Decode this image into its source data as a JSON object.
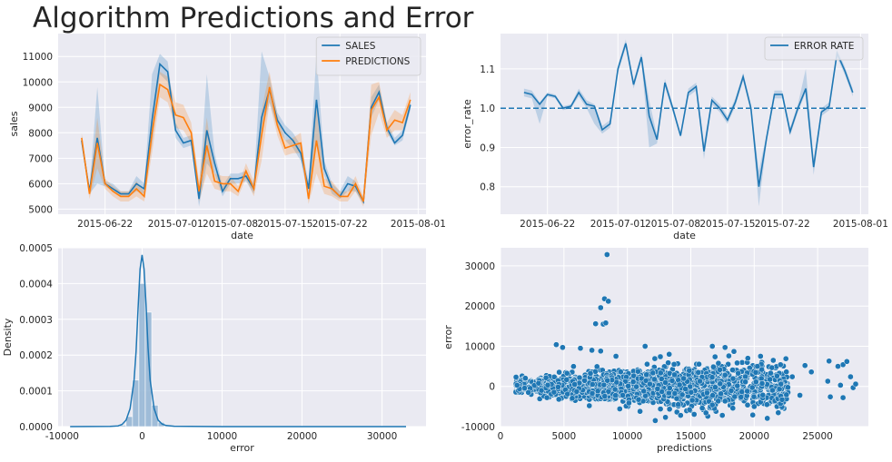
{
  "suptitle": "Algorithm Predictions and Error",
  "colors": {
    "blue": "#1f77b4",
    "orange": "#ff7f0e",
    "hist": "#92b4d4",
    "background": "#eaeaf2",
    "grid": "#ffffff"
  },
  "chart_data": [
    {
      "type": "line",
      "xlabel": "date",
      "ylabel": "sales",
      "x_ticks": [
        "2015-06-22",
        "2015-07-01",
        "2015-07-08",
        "2015-07-15",
        "2015-07-22",
        "2015-08-01"
      ],
      "ylim": [
        4800,
        11900
      ],
      "y_ticks": [
        5000,
        6000,
        7000,
        8000,
        9000,
        10000,
        11000
      ],
      "legend": "top-right",
      "x": [
        "2015-06-19",
        "2015-06-20",
        "2015-06-21",
        "2015-06-22",
        "2015-06-23",
        "2015-06-24",
        "2015-06-25",
        "2015-06-26",
        "2015-06-27",
        "2015-06-28",
        "2015-06-29",
        "2015-06-30",
        "2015-07-01",
        "2015-07-02",
        "2015-07-03",
        "2015-07-04",
        "2015-07-05",
        "2015-07-06",
        "2015-07-07",
        "2015-07-08",
        "2015-07-09",
        "2015-07-10",
        "2015-07-11",
        "2015-07-12",
        "2015-07-13",
        "2015-07-14",
        "2015-07-15",
        "2015-07-16",
        "2015-07-17",
        "2015-07-18",
        "2015-07-19",
        "2015-07-20",
        "2015-07-21",
        "2015-07-22",
        "2015-07-23",
        "2015-07-24",
        "2015-07-25",
        "2015-07-26",
        "2015-07-27",
        "2015-07-28",
        "2015-07-29",
        "2015-07-30",
        "2015-07-31"
      ],
      "series": [
        {
          "name": "SALES",
          "color": "#1f77b4",
          "values": [
            7700,
            5700,
            7800,
            6000,
            5800,
            5600,
            5600,
            6000,
            5800,
            8500,
            10700,
            10400,
            8100,
            7600,
            7700,
            5400,
            8100,
            6800,
            5700,
            6200,
            6200,
            6300,
            5800,
            8600,
            9700,
            8500,
            8000,
            7700,
            7200,
            5800,
            9300,
            6600,
            5800,
            5500,
            6000,
            5900,
            5300,
            9000,
            9600,
            8200,
            7600,
            7900,
            9100
          ],
          "band_lo": [
            7500,
            5600,
            6000,
            5900,
            5700,
            5500,
            5500,
            5700,
            5600,
            7500,
            10300,
            10000,
            7800,
            7400,
            7500,
            5100,
            6800,
            6400,
            5500,
            6000,
            6000,
            6100,
            5600,
            8000,
            9200,
            8200,
            7700,
            7400,
            6900,
            5500,
            7500,
            6300,
            5600,
            5400,
            5700,
            5700,
            5200,
            8600,
            9300,
            8000,
            7500,
            7700,
            8900
          ],
          "band_hi": [
            7900,
            5800,
            9800,
            6100,
            6000,
            5700,
            5700,
            6300,
            6000,
            10300,
            11100,
            10800,
            8400,
            7800,
            7900,
            5700,
            10300,
            7200,
            5900,
            6400,
            6400,
            6500,
            6000,
            11200,
            10200,
            8800,
            8300,
            8000,
            7500,
            6100,
            11100,
            6900,
            6000,
            5700,
            6300,
            6100,
            5400,
            9400,
            9900,
            8400,
            7800,
            8100,
            9300
          ]
        },
        {
          "name": "PREDICTIONS",
          "color": "#ff7f0e",
          "values": [
            7800,
            5600,
            7600,
            6000,
            5700,
            5500,
            5500,
            5800,
            5500,
            8000,
            9900,
            9700,
            8700,
            8600,
            8000,
            5700,
            7500,
            6100,
            6000,
            6000,
            5700,
            6500,
            5800,
            7900,
            9800,
            8300,
            7400,
            7500,
            7600,
            5400,
            7700,
            5900,
            5800,
            5500,
            5500,
            6000,
            5300,
            8900,
            9400,
            8100,
            8500,
            8400,
            9300
          ],
          "band_lo": [
            7600,
            5400,
            6600,
            5800,
            5500,
            5300,
            5300,
            5500,
            5300,
            7200,
            9400,
            9200,
            8200,
            8100,
            7600,
            5300,
            6400,
            5800,
            5700,
            5700,
            5500,
            6200,
            5500,
            6900,
            9200,
            7900,
            7100,
            7200,
            7200,
            5200,
            6400,
            5600,
            5500,
            5300,
            5300,
            5700,
            5100,
            7900,
            8800,
            7800,
            8100,
            8100,
            9000
          ],
          "band_hi": [
            8000,
            5800,
            8600,
            6200,
            5900,
            5700,
            5700,
            6100,
            5700,
            8800,
            10400,
            10200,
            9200,
            9100,
            8400,
            6100,
            8600,
            6400,
            6300,
            6300,
            5900,
            6800,
            6100,
            8900,
            10400,
            8700,
            7700,
            7800,
            8000,
            5600,
            9000,
            6200,
            6100,
            5700,
            5700,
            6300,
            5500,
            9900,
            10000,
            8400,
            8900,
            8700,
            9600
          ]
        }
      ]
    },
    {
      "type": "line",
      "xlabel": "date",
      "ylabel": "error_rate",
      "x_ticks": [
        "2015-06-22",
        "2015-07-01",
        "2015-07-08",
        "2015-07-15",
        "2015-07-22",
        "2015-08-01"
      ],
      "ylim": [
        0.73,
        1.19
      ],
      "y_ticks": [
        0.8,
        0.9,
        1.0,
        1.1
      ],
      "reference_line": 1.0,
      "legend": "top-right",
      "x": [
        "2015-06-19",
        "2015-06-20",
        "2015-06-21",
        "2015-06-22",
        "2015-06-23",
        "2015-06-24",
        "2015-06-25",
        "2015-06-26",
        "2015-06-27",
        "2015-06-28",
        "2015-06-29",
        "2015-06-30",
        "2015-07-01",
        "2015-07-02",
        "2015-07-03",
        "2015-07-04",
        "2015-07-05",
        "2015-07-06",
        "2015-07-07",
        "2015-07-08",
        "2015-07-09",
        "2015-07-10",
        "2015-07-11",
        "2015-07-12",
        "2015-07-13",
        "2015-07-14",
        "2015-07-15",
        "2015-07-16",
        "2015-07-17",
        "2015-07-18",
        "2015-07-19",
        "2015-07-20",
        "2015-07-21",
        "2015-07-22",
        "2015-07-23",
        "2015-07-24",
        "2015-07-25",
        "2015-07-26",
        "2015-07-27",
        "2015-07-28",
        "2015-07-29",
        "2015-07-30",
        "2015-07-31"
      ],
      "series": [
        {
          "name": "ERROR RATE",
          "color": "#1f77b4",
          "values": [
            1.04,
            1.035,
            1.01,
            1.035,
            1.03,
            1.0,
            1.005,
            1.04,
            1.01,
            1.005,
            0.945,
            0.96,
            1.1,
            1.165,
            1.06,
            1.13,
            0.98,
            0.92,
            1.065,
            1.0,
            0.93,
            1.04,
            1.055,
            0.89,
            1.02,
            1.0,
            0.97,
            1.015,
            1.08,
            1.0,
            0.8,
            0.925,
            1.035,
            1.035,
            0.94,
            1.0,
            1.05,
            0.85,
            0.99,
            1.005,
            1.14,
            1.095,
            1.04
          ],
          "band_lo": [
            1.03,
            1.025,
            0.96,
            1.03,
            1.025,
            0.995,
            1.0,
            1.03,
            1.0,
            0.96,
            0.935,
            0.95,
            1.09,
            1.155,
            1.05,
            1.12,
            0.9,
            0.91,
            1.055,
            0.99,
            0.925,
            1.03,
            1.045,
            0.87,
            1.01,
            0.99,
            0.96,
            1.005,
            1.07,
            0.99,
            0.75,
            0.915,
            1.025,
            1.025,
            0.93,
            0.99,
            1.04,
            0.83,
            0.98,
            0.995,
            1.13,
            1.085,
            1.03
          ],
          "band_hi": [
            1.05,
            1.045,
            1.015,
            1.04,
            1.035,
            1.005,
            1.01,
            1.05,
            1.02,
            1.01,
            0.955,
            0.97,
            1.11,
            1.175,
            1.07,
            1.14,
            1.02,
            0.93,
            1.075,
            1.01,
            0.935,
            1.05,
            1.065,
            0.91,
            1.03,
            1.01,
            0.98,
            1.025,
            1.09,
            1.01,
            0.84,
            0.935,
            1.045,
            1.045,
            0.95,
            1.01,
            1.1,
            0.87,
            1.0,
            1.015,
            1.15,
            1.105,
            1.05
          ]
        }
      ]
    },
    {
      "type": "bar",
      "subtype": "histogram-with-density",
      "xlabel": "error",
      "ylabel": "Density",
      "xlim": [
        -10500,
        35500
      ],
      "x_ticks": [
        -10000,
        0,
        10000,
        20000,
        30000
      ],
      "ylim": [
        0,
        0.0005
      ],
      "y_ticks": [
        0.0,
        0.0001,
        0.0002,
        0.0003,
        0.0004,
        0.0005
      ],
      "bins": [
        {
          "x0": -2800,
          "x1": -2000,
          "density": 4e-06
        },
        {
          "x0": -2000,
          "x1": -1200,
          "density": 2.8e-05
        },
        {
          "x0": -1200,
          "x1": -400,
          "density": 0.00013
        },
        {
          "x0": -400,
          "x1": 400,
          "density": 0.0004
        },
        {
          "x0": 400,
          "x1": 1200,
          "density": 0.00032
        },
        {
          "x0": 1200,
          "x1": 2000,
          "density": 6e-05
        },
        {
          "x0": 2000,
          "x1": 2800,
          "density": 1.2e-05
        },
        {
          "x0": 2800,
          "x1": 3600,
          "density": 3e-06
        }
      ],
      "kde_x": [
        -9000,
        -4000,
        -3000,
        -2500,
        -2000,
        -1500,
        -1000,
        -750,
        -500,
        -250,
        0,
        250,
        500,
        750,
        1000,
        1500,
        2000,
        2500,
        3000,
        4000,
        6000,
        10000,
        20000,
        33000
      ],
      "kde_y": [
        0.0,
        5e-07,
        2e-06,
        6e-06,
        1.8e-05,
        5e-05,
        0.00013,
        0.00021,
        0.00033,
        0.00044,
        0.00048,
        0.00044,
        0.00034,
        0.00022,
        0.00013,
        5e-05,
        1.8e-05,
        7e-06,
        3e-06,
        1e-06,
        4e-07,
        1e-07,
        0.0,
        0.0
      ]
    },
    {
      "type": "scatter",
      "xlabel": "predictions",
      "ylabel": "error",
      "xlim": [
        0,
        29000
      ],
      "x_ticks": [
        0,
        5000,
        10000,
        15000,
        20000,
        25000
      ],
      "ylim": [
        -10000,
        34500
      ],
      "y_ticks": [
        -10000,
        0,
        10000,
        20000,
        30000
      ],
      "color": "#1f77b4",
      "points": [
        [
          8400,
          32800
        ],
        [
          8200,
          21800
        ],
        [
          8500,
          21200
        ],
        [
          7900,
          19600
        ],
        [
          7500,
          15600
        ],
        [
          8100,
          15500
        ],
        [
          8300,
          15800
        ],
        [
          4400,
          10400
        ],
        [
          11400,
          10000
        ],
        [
          4900,
          9700
        ],
        [
          6300,
          9500
        ],
        [
          7200,
          9000
        ],
        [
          7900,
          8800
        ],
        [
          9100,
          7500
        ],
        [
          13300,
          8000
        ],
        [
          16700,
          10000
        ],
        [
          17700,
          9700
        ],
        [
          18400,
          8700
        ],
        [
          18000,
          7600
        ],
        [
          12600,
          7400
        ],
        [
          19500,
          7000
        ],
        [
          20500,
          7500
        ],
        [
          22500,
          6900
        ],
        [
          25900,
          6300
        ],
        [
          27000,
          5400
        ],
        [
          26600,
          5000
        ],
        [
          27300,
          6200
        ],
        [
          24000,
          5200
        ],
        [
          24500,
          3600
        ],
        [
          23000,
          2400
        ],
        [
          25800,
          1300
        ],
        [
          26800,
          300
        ],
        [
          27800,
          -300
        ],
        [
          28000,
          600
        ],
        [
          27600,
          2400
        ],
        [
          26000,
          -2600
        ],
        [
          27000,
          -2800
        ],
        [
          23600,
          -2200
        ],
        [
          22100,
          -2400
        ],
        [
          21000,
          -4500
        ],
        [
          22200,
          -3300
        ],
        [
          20000,
          -5000
        ],
        [
          16700,
          -4600
        ],
        [
          15900,
          -5400
        ],
        [
          14900,
          -5800
        ],
        [
          14200,
          -7200
        ],
        [
          13000,
          -7700
        ],
        [
          12200,
          -8500
        ],
        [
          16200,
          -6600
        ],
        [
          11000,
          -6200
        ],
        [
          9400,
          -5600
        ],
        [
          7000,
          -4800
        ],
        [
          4600,
          -3200
        ],
        [
          2200,
          -1500
        ],
        [
          1500,
          -600
        ],
        [
          3000,
          800
        ],
        [
          1300,
          300
        ]
      ]
    }
  ]
}
